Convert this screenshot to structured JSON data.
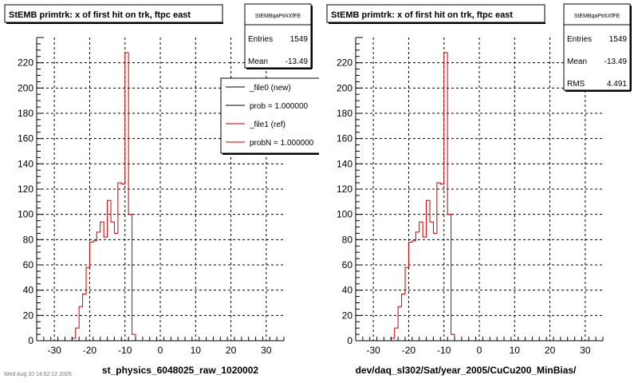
{
  "chart_data": [
    {
      "type": "histogram",
      "title": "StEMB primtrk: x of first hit on trk, ftpc east",
      "xlabel": "st_physics_6048025_raw_1020002",
      "xlim": [
        -35,
        35
      ],
      "ylim": [
        0,
        240
      ],
      "xticks": [
        -30,
        -20,
        -10,
        0,
        10,
        20,
        30
      ],
      "yticks": [
        0,
        20,
        40,
        60,
        80,
        100,
        120,
        140,
        160,
        180,
        200,
        220
      ],
      "grid": true,
      "color": "#cc0000",
      "bin_edges": [
        -25,
        -24,
        -23,
        -22,
        -21,
        -20,
        -19,
        -18,
        -17,
        -16,
        -15,
        -14,
        -13,
        -12,
        -11,
        -10,
        -9,
        -8,
        -7
      ],
      "values": [
        2,
        10,
        27,
        37,
        58,
        78,
        79,
        86,
        94,
        82,
        111,
        94,
        85,
        125,
        124,
        228,
        100,
        5
      ],
      "stats": {
        "name": "StEMBqaPtrkXfFE",
        "rows": [
          {
            "label": "Entries",
            "value": "1549"
          },
          {
            "label": "Mean",
            "value": "-13.49"
          }
        ]
      },
      "legend": {
        "entries": [
          {
            "label": "_file0 (new)",
            "color": "#000000"
          },
          {
            "label": "prob = 1.000000",
            "color": "#000000"
          },
          {
            "label": "_file1 (ref)",
            "color": "#cc0000"
          },
          {
            "label": "probN = 1.000000",
            "color": "#cc0000"
          }
        ]
      }
    },
    {
      "type": "histogram",
      "title": "StEMB primtrk: x of first hit on trk, ftpc east",
      "xlabel": "dev/daq_sl302/Sat/year_2005/CuCu200_MinBias/",
      "xlim": [
        -35,
        35
      ],
      "ylim": [
        0,
        240
      ],
      "xticks": [
        -30,
        -20,
        -10,
        0,
        10,
        20,
        30
      ],
      "yticks": [
        0,
        20,
        40,
        60,
        80,
        100,
        120,
        140,
        160,
        180,
        200,
        220
      ],
      "grid": true,
      "color": "#cc0000",
      "bin_edges": [
        -25,
        -24,
        -23,
        -22,
        -21,
        -20,
        -19,
        -18,
        -17,
        -16,
        -15,
        -14,
        -13,
        -12,
        -11,
        -10,
        -9,
        -8,
        -7
      ],
      "values": [
        2,
        10,
        27,
        37,
        58,
        78,
        79,
        86,
        94,
        82,
        111,
        94,
        85,
        125,
        124,
        228,
        100,
        5
      ],
      "stats": {
        "name": "StEMBqaPtrkXfFE",
        "rows": [
          {
            "label": "Entries",
            "value": "1549"
          },
          {
            "label": "Mean",
            "value": "-13.49"
          },
          {
            "label": "RMS",
            "value": "4.491"
          }
        ]
      }
    }
  ],
  "footer": "Wed Aug 10 14:52:12 2005"
}
